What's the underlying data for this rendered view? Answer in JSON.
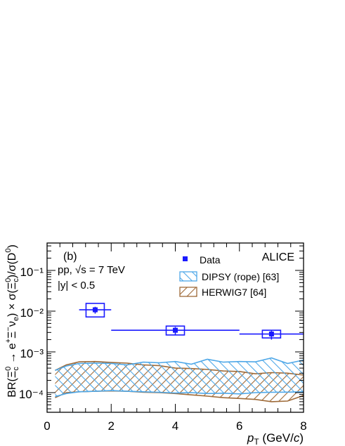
{
  "chart_data": {
    "type": "scatter",
    "panel_label": "(b)",
    "experiment": "ALICE",
    "system": "pp, √s = 7 TeV",
    "rapidity": "|y| < 0.5",
    "xlabel": "p_T (GeV/c)",
    "ylabel": "BR(Ξc0 → e+Ξ−νe) × σ(Ξc0)/σ(D0)",
    "xlim": [
      0,
      8
    ],
    "ylim": [
      4e-05,
      0.5
    ],
    "yscale": "log",
    "x_ticks": [
      "0",
      "2",
      "4",
      "6",
      "8"
    ],
    "y_ticks": [
      "10⁻⁴",
      "10⁻³",
      "10⁻²",
      "10⁻¹"
    ],
    "legend": {
      "placement": "top-right",
      "entries": [
        "Data",
        "DIPSY (rope) [63]",
        "HERWIG7 [64]"
      ]
    },
    "colors": {
      "data": "#1a1aff",
      "dipsy": "#4fa8e8",
      "herwig": "#9e6a38"
    },
    "series": [
      {
        "name": "Data",
        "points": [
          {
            "x": 1.5,
            "y": 0.0108,
            "x_lo": 1.0,
            "x_hi": 2.0,
            "stat_lo": 0.0087,
            "stat_hi": 0.0128,
            "sys_lo": 0.0072,
            "sys_hi": 0.0155
          },
          {
            "x": 4.0,
            "y": 0.0034,
            "x_lo": 2.0,
            "x_hi": 6.0,
            "stat_lo": 0.0026,
            "stat_hi": 0.0041,
            "sys_lo": 0.0026,
            "sys_hi": 0.0043
          },
          {
            "x": 7.0,
            "y": 0.00275,
            "x_lo": 6.0,
            "x_hi": 8.0,
            "stat_lo": 0.002,
            "stat_hi": 0.0034,
            "sys_lo": 0.0022,
            "sys_hi": 0.0034
          }
        ]
      },
      {
        "name": "DIPSY (rope) [63]",
        "x": [
          0.25,
          0.6,
          1.0,
          1.5,
          2.0,
          2.5,
          3.0,
          3.5,
          4.0,
          4.5,
          5.0,
          5.5,
          6.0,
          6.5,
          7.0,
          7.5,
          8.0
        ],
        "upper": [
          0.00035,
          0.00045,
          0.00052,
          0.00053,
          0.00052,
          0.00048,
          0.00056,
          0.00054,
          0.00058,
          0.0005,
          0.00066,
          0.00056,
          0.00058,
          0.00057,
          0.00071,
          0.00052,
          0.00063
        ],
        "lower": [
          8e-05,
          9.5e-05,
          0.000105,
          0.000108,
          0.000112,
          0.000108,
          0.000105,
          0.000102,
          9.8e-05,
          0.0001,
          9.5e-05,
          9.7e-05,
          9.3e-05,
          0.0001,
          0.000102,
          0.000103,
          0.000105
        ]
      },
      {
        "name": "HERWIG7 [64]",
        "x": [
          0.25,
          0.6,
          1.0,
          1.5,
          2.0,
          2.5,
          3.0,
          3.5,
          4.0,
          4.5,
          5.0,
          5.5,
          6.0,
          6.5,
          7.0,
          7.5,
          8.0
        ],
        "upper": [
          0.00035,
          0.00048,
          0.00057,
          0.00058,
          0.00055,
          0.00053,
          0.00048,
          0.00046,
          0.0004,
          0.00039,
          0.00037,
          0.00034,
          0.00033,
          0.00029,
          0.00031,
          0.0003,
          0.00027
        ],
        "lower": [
          7.5e-05,
          0.0001,
          0.000105,
          0.000108,
          0.00011,
          0.000108,
          0.000102,
          0.0001,
          9.5e-05,
          8.8e-05,
          8.2e-05,
          7.5e-05,
          7.2e-05,
          6.8e-05,
          6e-05,
          6.2e-05,
          8.5e-05
        ]
      }
    ]
  }
}
